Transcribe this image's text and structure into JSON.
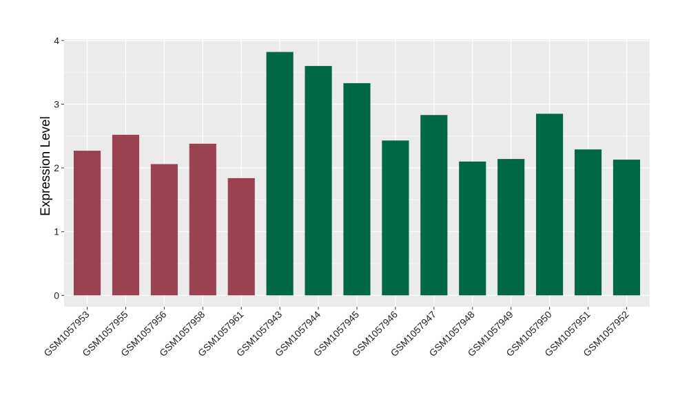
{
  "chart_data": {
    "type": "bar",
    "title": "",
    "xlabel": "",
    "ylabel": "Expression Level",
    "ylim": [
      -0.18,
      4.02
    ],
    "yticks": [
      0,
      1,
      2,
      3,
      4
    ],
    "grid": true,
    "legend": "none",
    "categories": [
      "GSM1057953",
      "GSM1057955",
      "GSM1057956",
      "GSM1057958",
      "GSM1057961",
      "GSM1057943",
      "GSM1057944",
      "GSM1057945",
      "GSM1057946",
      "GSM1057947",
      "GSM1057948",
      "GSM1057949",
      "GSM1057950",
      "GSM1057951",
      "GSM1057952"
    ],
    "values": [
      2.27,
      2.52,
      2.06,
      2.38,
      1.84,
      3.82,
      3.6,
      3.33,
      2.43,
      2.83,
      2.1,
      2.14,
      2.85,
      2.29,
      2.13
    ],
    "group_colors": [
      "#9b4252",
      "#9b4252",
      "#9b4252",
      "#9b4252",
      "#9b4252",
      "#006844",
      "#006844",
      "#006844",
      "#006844",
      "#006844",
      "#006844",
      "#006844",
      "#006844",
      "#006844",
      "#006844"
    ],
    "panel_background": "#ebebeb",
    "grid_color": "#ffffff"
  }
}
